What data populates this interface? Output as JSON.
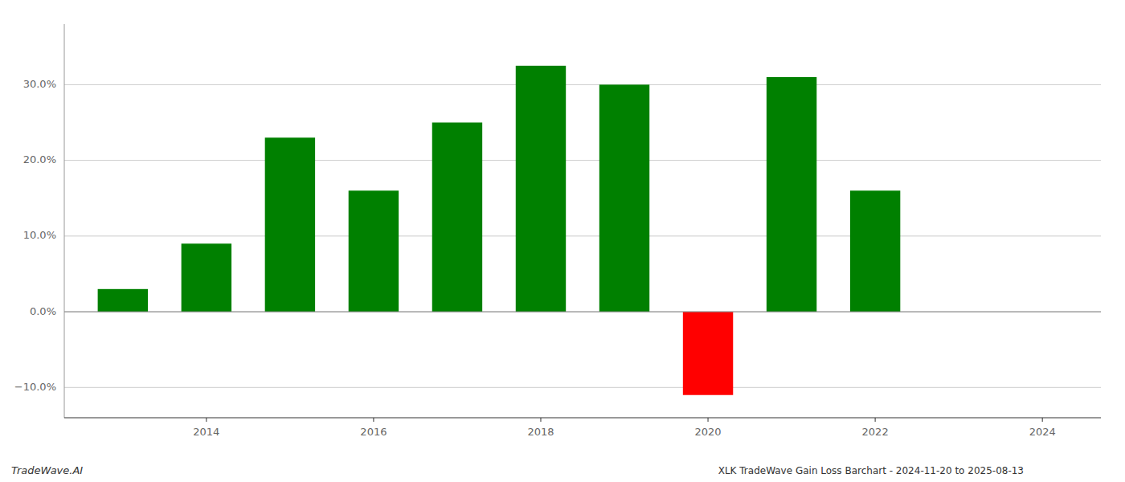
{
  "chart_data": {
    "type": "bar",
    "title": "XLK TradeWave Gain Loss Barchart - 2024-11-20 to 2025-08-13",
    "annotations": [
      "TradeWave.AI"
    ],
    "x": [
      2013,
      2014,
      2015,
      2016,
      2017,
      2018,
      2019,
      2020,
      2021,
      2022,
      2023
    ],
    "values": [
      3.0,
      9.0,
      23.0,
      16.0,
      25.0,
      32.5,
      30.0,
      -11.0,
      31.0,
      16.0,
      0.0
    ],
    "colors": [
      "#008000",
      "#008000",
      "#008000",
      "#008000",
      "#008000",
      "#008000",
      "#008000",
      "#ff0000",
      "#008000",
      "#008000",
      "#008000"
    ],
    "xlim": [
      2012.3,
      2024.7
    ],
    "xticks": [
      2014,
      2016,
      2018,
      2020,
      2022,
      2024
    ],
    "ylim": [
      -14,
      38
    ],
    "yticks": [
      {
        "value": -10,
        "label": "−10.0%"
      },
      {
        "value": 0,
        "label": "0.0%"
      },
      {
        "value": 10,
        "label": "10.0%"
      },
      {
        "value": 20,
        "label": "20.0%"
      },
      {
        "value": 30,
        "label": "30.0%"
      }
    ],
    "grid": true
  }
}
